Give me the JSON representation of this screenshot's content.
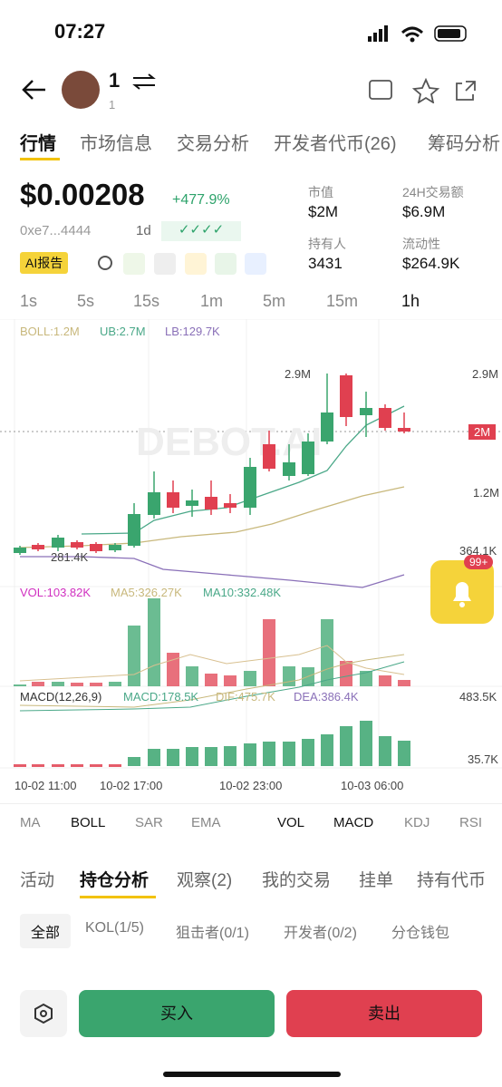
{
  "status": {
    "time": "07:27"
  },
  "header": {
    "name": "1",
    "sub": "1"
  },
  "tabs": [
    "行情",
    "市场信息",
    "交易分析",
    "开发者代币(26)",
    "筹码分析"
  ],
  "token": {
    "price": "$0.00208",
    "change": "+477.9%",
    "address": "0xe7...4444",
    "age": "1d",
    "ai": "AI报告"
  },
  "stats": [
    {
      "label": "市值",
      "value": "$2M"
    },
    {
      "label": "24H交易额",
      "value": "$6.9M"
    },
    {
      "label": "持有人",
      "value": "3431"
    },
    {
      "label": "流动性",
      "value": "$264.9K"
    }
  ],
  "timeframes": [
    "1s",
    "5s",
    "15s",
    "1m",
    "5m",
    "15m",
    "1h"
  ],
  "chart": {
    "boll": "BOLL:1.2M",
    "ub": "UB:2.7M",
    "lb": "LB:129.7K",
    "watermark": "DEBOT.AI",
    "price_labels": [
      "2.9M",
      "2M",
      "1.2M",
      "364.1K"
    ],
    "high_note": "2.9M",
    "low_note": "281.4K",
    "vol": "VOL:103.82K",
    "ma5": "MA5:326.27K",
    "ma10": "MA10:332.48K",
    "macd_title": "MACD(12,26,9)",
    "macd": "MACD:178.5K",
    "dif": "DIF:475.7K",
    "dea": "DEA:386.4K",
    "macd_labels": [
      "483.5K",
      "35.7K"
    ],
    "x_labels": [
      "10-02 11:00",
      "10-02 17:00",
      "10-02 23:00",
      "10-03 06:00"
    ]
  },
  "badge": "99+",
  "indicators": [
    "MA",
    "BOLL",
    "SAR",
    "EMA",
    "VOL",
    "MACD",
    "KDJ",
    "RSI"
  ],
  "bottom_tabs": [
    "活动",
    "持仓分析",
    "观察(2)",
    "我的交易",
    "挂单",
    "持有代币"
  ],
  "filters": [
    "全部",
    "KOL(1/5)",
    "狙击者(0/1)",
    "开发者(0/2)",
    "分仓钱包"
  ],
  "buttons": {
    "buy": "买入",
    "sell": "卖出"
  }
}
